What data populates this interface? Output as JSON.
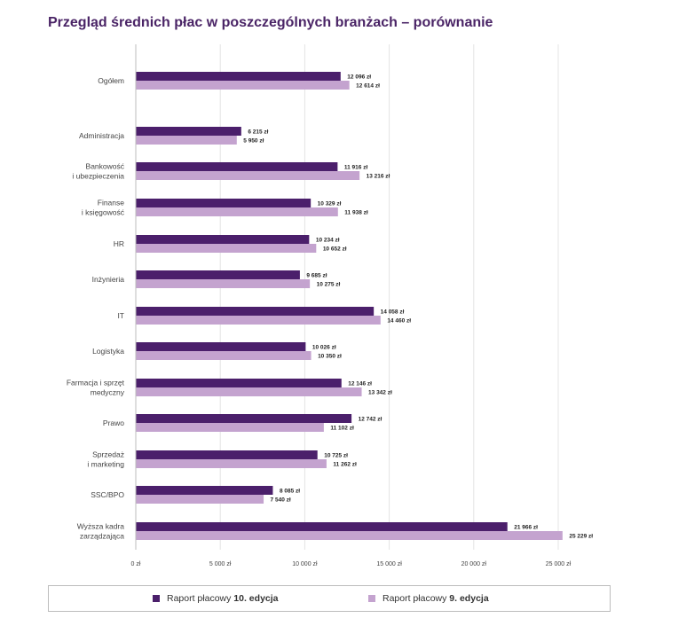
{
  "chart_data": {
    "type": "bar",
    "orientation": "horizontal",
    "title": "Przegląd średnich płac w poszczególnych branżach – porównanie",
    "categories": [
      [
        "Ogółem"
      ],
      [
        "Administracja"
      ],
      [
        "Bankowość",
        "i ubezpieczenia"
      ],
      [
        "Finanse",
        "i księgowość"
      ],
      [
        "HR"
      ],
      [
        "Inżynieria"
      ],
      [
        "IT"
      ],
      [
        "Logistyka"
      ],
      [
        "Farmacja i sprzęt",
        "medyczny"
      ],
      [
        "Prawo"
      ],
      [
        "Sprzedaż",
        "i marketing"
      ],
      [
        "SSC/BPO"
      ],
      [
        "Wyższa kadra",
        "zarządzająca"
      ]
    ],
    "series": [
      {
        "name": "Raport płacowy 10. edycja",
        "color": "#4b1f6b",
        "values": [
          12096,
          6215,
          11916,
          10329,
          10234,
          9685,
          14058,
          10026,
          12146,
          12742,
          10725,
          8085,
          21966
        ],
        "labels": [
          "12 096 zł",
          "6 215 zł",
          "11 916 zł",
          "10 329 zł",
          "10 234 zł",
          "9 685 zł",
          "14 058 zł",
          "10 026 zł",
          "12 146 zł",
          "12 742 zł",
          "10 725 zł",
          "8 085 zł",
          "21 966 zł"
        ]
      },
      {
        "name": "Raport płacowy 9. edycja",
        "color": "#c4a3cf",
        "values": [
          12614,
          5950,
          13216,
          11938,
          10652,
          10275,
          14460,
          10350,
          13342,
          11102,
          11262,
          7540,
          25229
        ],
        "labels": [
          "12 614 zł",
          "5 950 zł",
          "13 216 zł",
          "11 938 zł",
          "10 652 zł",
          "10 275 zł",
          "14 460 zł",
          "10 350 zł",
          "13 342 zł",
          "11 102 zł",
          "11 262 zł",
          "7 540 zł",
          "25 229 zł"
        ]
      }
    ],
    "xlim": [
      0,
      25000
    ],
    "xticks": [
      0,
      5000,
      10000,
      15000,
      20000,
      25000
    ],
    "xtick_labels": [
      "0 zł",
      "5 000 zł",
      "10 000 zł",
      "15 000 zł",
      "20 000 zł",
      "25 000 zł"
    ],
    "grid": true,
    "legend_position": "bottom"
  },
  "legend": {
    "item1_prefix": "Raport płacowy ",
    "item1_bold": "10. edycja",
    "item2_prefix": "Raport płacowy ",
    "item2_bold": "9. edycja"
  }
}
